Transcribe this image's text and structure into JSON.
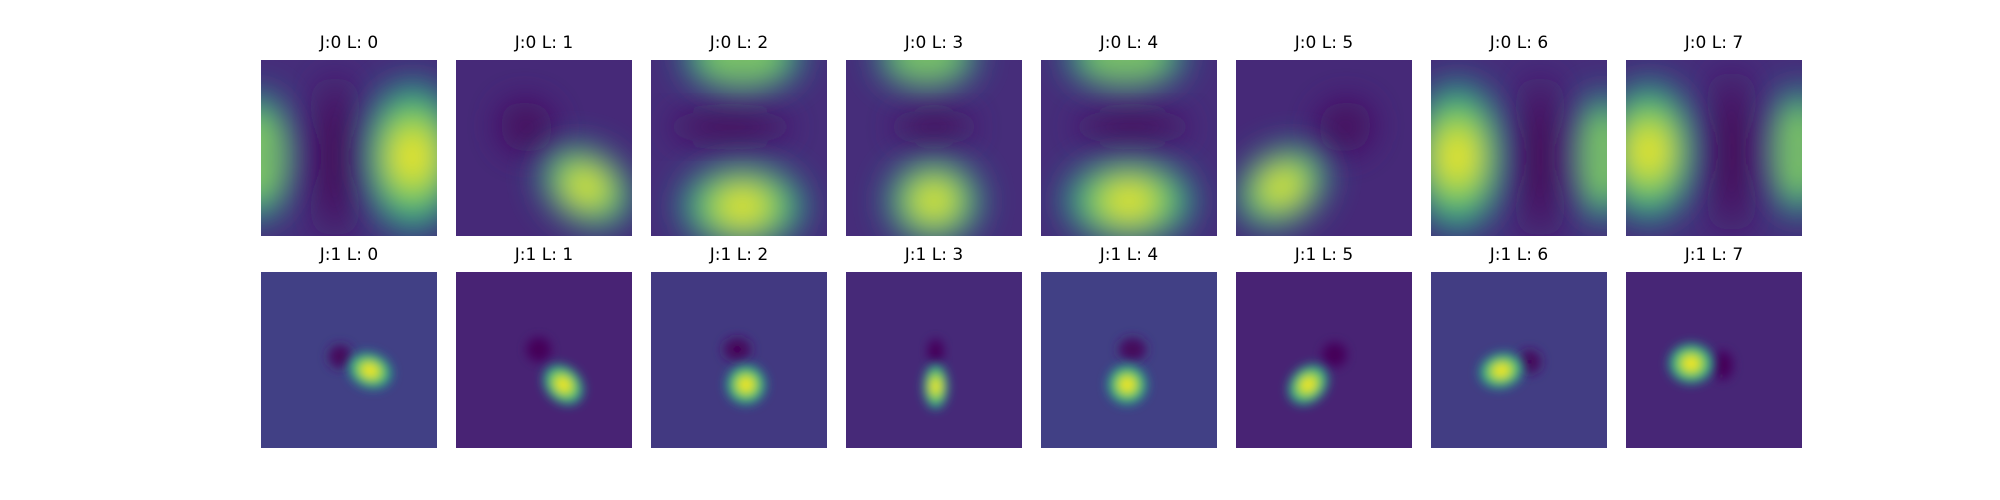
{
  "chart_data": {
    "type": "heatmap",
    "colormap": "viridis",
    "grid": false,
    "axes": "off",
    "rows": 2,
    "cols": 8,
    "panels": [
      {
        "title": "J:0 L: 0",
        "j": 0,
        "l": 0
      },
      {
        "title": "J:0 L: 1",
        "j": 0,
        "l": 1
      },
      {
        "title": "J:0 L: 2",
        "j": 0,
        "l": 2
      },
      {
        "title": "J:0 L: 3",
        "j": 0,
        "l": 3
      },
      {
        "title": "J:0 L: 4",
        "j": 0,
        "l": 4
      },
      {
        "title": "J:0 L: 5",
        "j": 0,
        "l": 5
      },
      {
        "title": "J:0 L: 6",
        "j": 0,
        "l": 6
      },
      {
        "title": "J:0 L: 7",
        "j": 0,
        "l": 7
      },
      {
        "title": "J:1 L: 0",
        "j": 1,
        "l": 0
      },
      {
        "title": "J:1 L: 1",
        "j": 1,
        "l": 1
      },
      {
        "title": "J:1 L: 2",
        "j": 1,
        "l": 2
      },
      {
        "title": "J:1 L: 3",
        "j": 1,
        "l": 3
      },
      {
        "title": "J:1 L: 4",
        "j": 1,
        "l": 4
      },
      {
        "title": "J:1 L: 5",
        "j": 1,
        "l": 5
      },
      {
        "title": "J:1 L: 6",
        "j": 1,
        "l": 6
      },
      {
        "title": "J:1 L: 7",
        "j": 1,
        "l": 7
      }
    ]
  }
}
